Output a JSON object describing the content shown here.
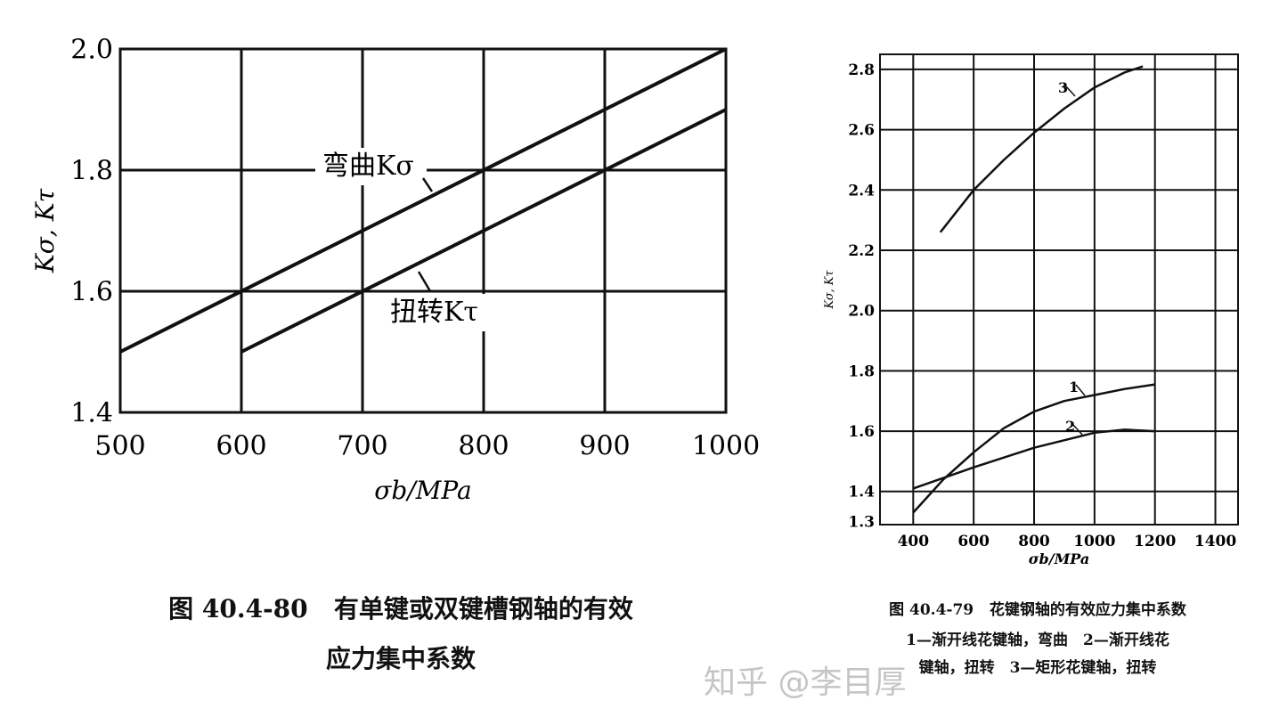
{
  "chart_data": [
    {
      "type": "line",
      "title": "图 40.4-80   有单键或双键槽钢轴的有效",
      "title_line2": "应力集中系数",
      "xlabel": "σb/MPa",
      "ylabel": "Kσ, Kτ",
      "xlim": [
        500,
        1000
      ],
      "ylim": [
        1.4,
        2.0
      ],
      "xticks": [
        "500",
        "600",
        "700",
        "800",
        "900",
        "1000"
      ],
      "yticks": [
        "1.4",
        "1.6",
        "1.8",
        "2.0"
      ],
      "grid": true,
      "series": [
        {
          "name": "弯曲Kσ",
          "x": [
            500,
            1000
          ],
          "y": [
            1.5,
            2.0
          ]
        },
        {
          "name": "扭转Kτ",
          "x": [
            600,
            1000
          ],
          "y": [
            1.5,
            1.9
          ]
        }
      ]
    },
    {
      "type": "line",
      "title": "图 40.4-79   花键钢轴的有效应力集中系数",
      "legend_lines": [
        "1—渐开线花键轴，弯曲　2—渐开线花",
        "键轴，扭转　3—矩形花键轴，扭转"
      ],
      "xlabel": "σb/MPa",
      "ylabel": "Kσ, Kτ",
      "xlim": [
        290,
        1475
      ],
      "ylim": [
        1.29,
        2.85
      ],
      "xticks": [
        "400",
        "600",
        "800",
        "1000",
        "1200",
        "1400"
      ],
      "yticks": [
        "1.3",
        "1.4",
        "1.6",
        "1.8",
        "2.0",
        "2.2",
        "2.4",
        "2.6",
        "2.8"
      ],
      "grid": true,
      "series": [
        {
          "name": "1",
          "x": [
            400,
            500,
            600,
            700,
            800,
            900,
            1000,
            1100,
            1200
          ],
          "y": [
            1.33,
            1.44,
            1.53,
            1.61,
            1.665,
            1.7,
            1.72,
            1.74,
            1.755
          ]
        },
        {
          "name": "2",
          "x": [
            400,
            600,
            800,
            1000,
            1100,
            1200
          ],
          "y": [
            1.41,
            1.48,
            1.545,
            1.595,
            1.605,
            1.6
          ]
        },
        {
          "name": "3",
          "x": [
            490,
            600,
            700,
            800,
            900,
            1000,
            1100,
            1160
          ],
          "y": [
            2.26,
            2.4,
            2.5,
            2.59,
            2.67,
            2.74,
            2.79,
            2.81
          ]
        }
      ]
    }
  ],
  "watermark": "知乎 @李目厚"
}
